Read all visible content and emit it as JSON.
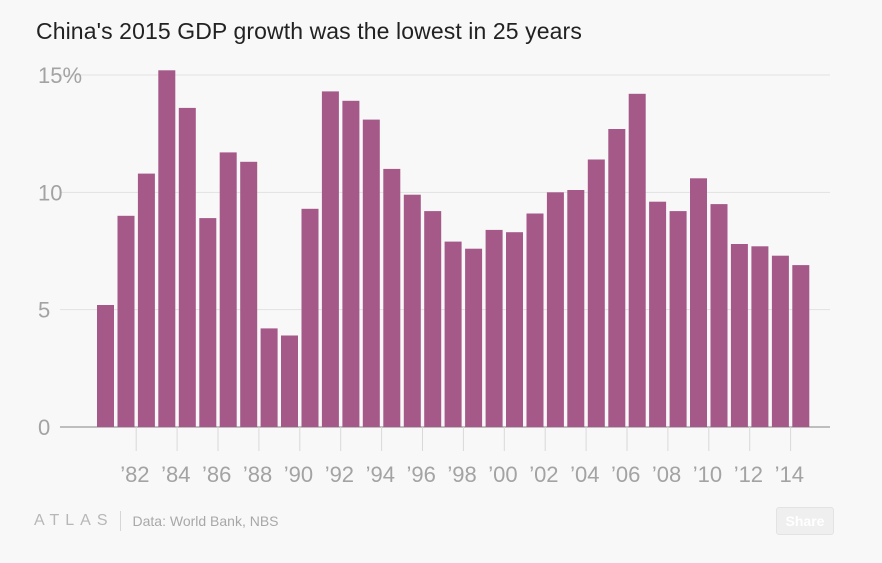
{
  "title": "China's 2015 GDP growth was the lowest in 25 years",
  "footer": {
    "brand": "ATLAS",
    "source": "Data: World Bank, NBS",
    "share_label": "Share"
  },
  "colors": {
    "bar": "#a55989",
    "grid": "#e2e2e2",
    "axis_text": "#a3a3a3"
  },
  "chart_data": {
    "type": "bar",
    "categories": [
      "1981",
      "1982",
      "1983",
      "1984",
      "1985",
      "1986",
      "1987",
      "1988",
      "1989",
      "1990",
      "1991",
      "1992",
      "1993",
      "1994",
      "1995",
      "1996",
      "1997",
      "1998",
      "1999",
      "2000",
      "2001",
      "2002",
      "2003",
      "2004",
      "2005",
      "2006",
      "2007",
      "2008",
      "2009",
      "2010",
      "2011",
      "2012",
      "2013",
      "2014",
      "2015"
    ],
    "values": [
      5.2,
      9.0,
      10.8,
      15.2,
      13.6,
      8.9,
      11.7,
      11.3,
      4.2,
      3.9,
      9.3,
      14.3,
      13.9,
      13.1,
      11.0,
      9.9,
      9.2,
      7.9,
      7.6,
      8.4,
      8.3,
      9.1,
      10.0,
      10.1,
      11.4,
      12.7,
      14.2,
      9.6,
      9.2,
      10.6,
      9.5,
      7.8,
      7.7,
      7.3,
      6.9
    ],
    "x_tick_labels": [
      "’82",
      "’84",
      "’86",
      "’88",
      "’90",
      "’92",
      "’94",
      "’96",
      "’98",
      "’00",
      "’02",
      "’04",
      "’06",
      "’08",
      "’10",
      "’12",
      "’14"
    ],
    "y_ticks": [
      "0",
      "5",
      "10",
      "15%"
    ],
    "y_tick_values": [
      0,
      5,
      10,
      15
    ],
    "ylim": [
      0,
      15
    ],
    "xlabel": "",
    "ylabel": "",
    "grid": true
  }
}
